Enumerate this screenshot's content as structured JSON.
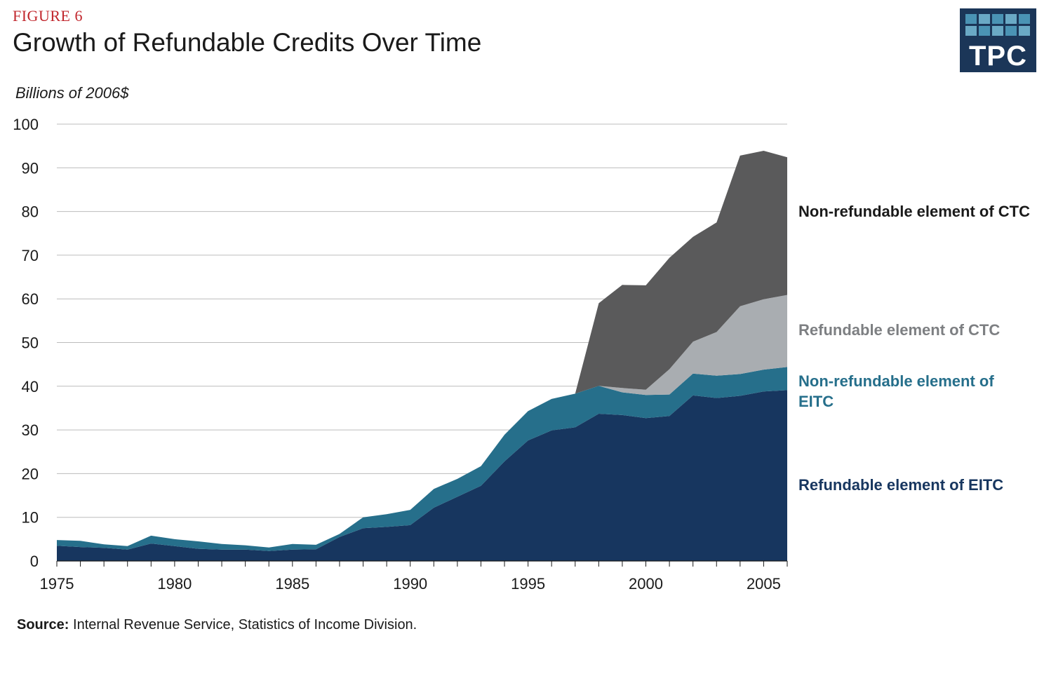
{
  "figure_label": "FIGURE 6",
  "title": "Growth of Refundable Credits Over Time",
  "logo_text": "TPC",
  "unit_label": "Billions of 2006$",
  "source": {
    "bold": "Source:",
    "text": " Internal Revenue Service, Statistics of Income Division."
  },
  "colors": {
    "refundable_eitc": "#17365f",
    "nonrefundable_eitc": "#266f8b",
    "refundable_ctc": "#a9adb1",
    "nonrefundable_ctc": "#5a5a5b",
    "grid": "#bcbcbc",
    "logo_bg": "#1b3658",
    "logo_cells": [
      "#4a93b4",
      "#6aa9c5"
    ]
  },
  "chart_data": {
    "type": "area",
    "stacked": true,
    "ylim": [
      0,
      100
    ],
    "yticks": [
      0,
      10,
      20,
      30,
      40,
      50,
      60,
      70,
      80,
      90,
      100
    ],
    "xlim": [
      1975,
      2006
    ],
    "xtick_labels": [
      1975,
      1980,
      1985,
      1990,
      1995,
      2000,
      2005
    ],
    "grid": "horizontal",
    "legend": "right, labels beside series",
    "x": [
      1975,
      1976,
      1977,
      1978,
      1979,
      1980,
      1981,
      1982,
      1983,
      1984,
      1985,
      1986,
      1987,
      1988,
      1989,
      1990,
      1991,
      1992,
      1993,
      1994,
      1995,
      1996,
      1997,
      1998,
      1999,
      2000,
      2001,
      2002,
      2003,
      2004,
      2005,
      2006
    ],
    "series": [
      {
        "name": "Refundable element of EITC",
        "color_key": "refundable_eitc",
        "values": [
          3.5,
          3.2,
          3.0,
          2.6,
          4.0,
          3.4,
          2.8,
          2.6,
          2.6,
          2.3,
          2.6,
          2.7,
          5.5,
          7.5,
          7.8,
          8.2,
          12.2,
          14.7,
          17.2,
          22.8,
          27.6,
          29.9,
          30.6,
          33.7,
          33.4,
          32.7,
          33.2,
          37.9,
          37.3,
          37.8,
          38.8,
          39.1
        ]
      },
      {
        "name": "Non-refundable element of EITC",
        "color_key": "nonrefundable_eitc",
        "values": [
          1.3,
          1.4,
          0.8,
          0.8,
          1.8,
          1.6,
          1.7,
          1.3,
          1.0,
          0.8,
          1.3,
          1.0,
          0.7,
          2.5,
          2.9,
          3.5,
          4.3,
          4.1,
          4.5,
          6.1,
          6.7,
          7.2,
          7.7,
          6.4,
          5.2,
          5.3,
          4.9,
          5.0,
          5.1,
          5.0,
          5.0,
          5.3
        ]
      },
      {
        "name": "Refundable element of CTC",
        "color_key": "refundable_ctc",
        "values": [
          0,
          0,
          0,
          0,
          0,
          0,
          0,
          0,
          0,
          0,
          0,
          0,
          0,
          0,
          0,
          0,
          0,
          0,
          0,
          0,
          0,
          0,
          0,
          0,
          1.0,
          1.2,
          5.8,
          7.3,
          10.0,
          15.5,
          16.1,
          16.5
        ]
      },
      {
        "name": "Non-refundable element of CTC",
        "color_key": "nonrefundable_ctc",
        "values": [
          0,
          0,
          0,
          0,
          0,
          0,
          0,
          0,
          0,
          0,
          0,
          0,
          0,
          0,
          0,
          0,
          0,
          0,
          0,
          0,
          0,
          0,
          0,
          18.9,
          23.6,
          23.9,
          25.5,
          24.0,
          25.1,
          34.5,
          34.0,
          31.5
        ]
      }
    ]
  },
  "legend_labels": {
    "nonrefundable_ctc": "Non-refundable element of CTC",
    "refundable_ctc": "Refundable element of CTC",
    "nonrefundable_eitc": "Non-refundable element of EITC",
    "refundable_eitc": "Refundable element of EITC"
  }
}
